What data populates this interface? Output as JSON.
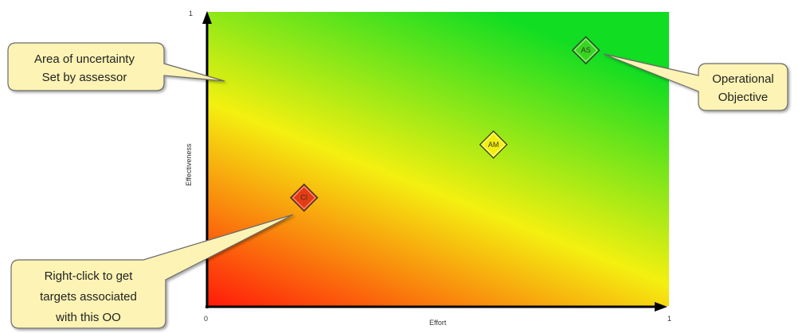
{
  "axes": {
    "x_label": "Effort",
    "y_label": "Effectiveness",
    "x_min": "0",
    "x_max": "1",
    "y_max": "1"
  },
  "markers": [
    {
      "label": "CI",
      "effort": 0.21,
      "effectiveness": 0.37,
      "color": "#e53b12"
    },
    {
      "label": "AM",
      "effort": 0.62,
      "effectiveness": 0.55,
      "color": "#f3ee10"
    },
    {
      "label": "AS",
      "effort": 0.82,
      "effectiveness": 0.87,
      "color": "#38d41f"
    }
  ],
  "callouts": {
    "uncertainty": {
      "line1": "Area of uncertainty",
      "line2": "Set by assessor"
    },
    "objective": {
      "line1": "Operational",
      "line2": "Objective"
    },
    "rightclick": {
      "line1": "Right-click to get",
      "line2": "targets associated",
      "line3": "with this OO"
    }
  },
  "colors": {
    "high": "#11dd22",
    "mid": "#f4f010",
    "low": "#ff1a0a",
    "callout_fill": "#fdf3b4",
    "callout_stroke": "#6b6b6b"
  }
}
